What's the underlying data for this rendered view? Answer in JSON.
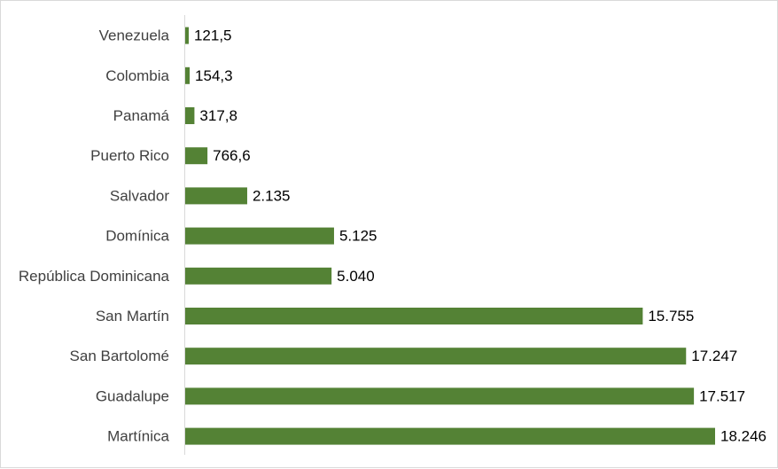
{
  "chart_data": {
    "type": "bar",
    "orientation": "horizontal",
    "categories": [
      "Venezuela",
      "Colombia",
      "Panamá",
      "Puerto Rico",
      "Salvador",
      "Domínica",
      "República Dominicana",
      "San Martín",
      "San Bartolomé",
      "Guadalupe",
      "Martínica"
    ],
    "values": [
      121.5,
      154.3,
      317.8,
      766.6,
      2135,
      5125,
      5040,
      15755,
      17247,
      17517,
      18246
    ],
    "value_labels": [
      "121,5",
      "154,3",
      "317,8",
      "766,6",
      "2.135",
      "5.125",
      "5.040",
      "15.755",
      "17.247",
      "17.517",
      "18.246"
    ],
    "title": "",
    "xlabel": "",
    "ylabel": "",
    "xlim": [
      0,
      20000
    ],
    "grid": false,
    "legend": "none",
    "bar_color": "#548235",
    "axis_color": "#d9d9d9"
  }
}
